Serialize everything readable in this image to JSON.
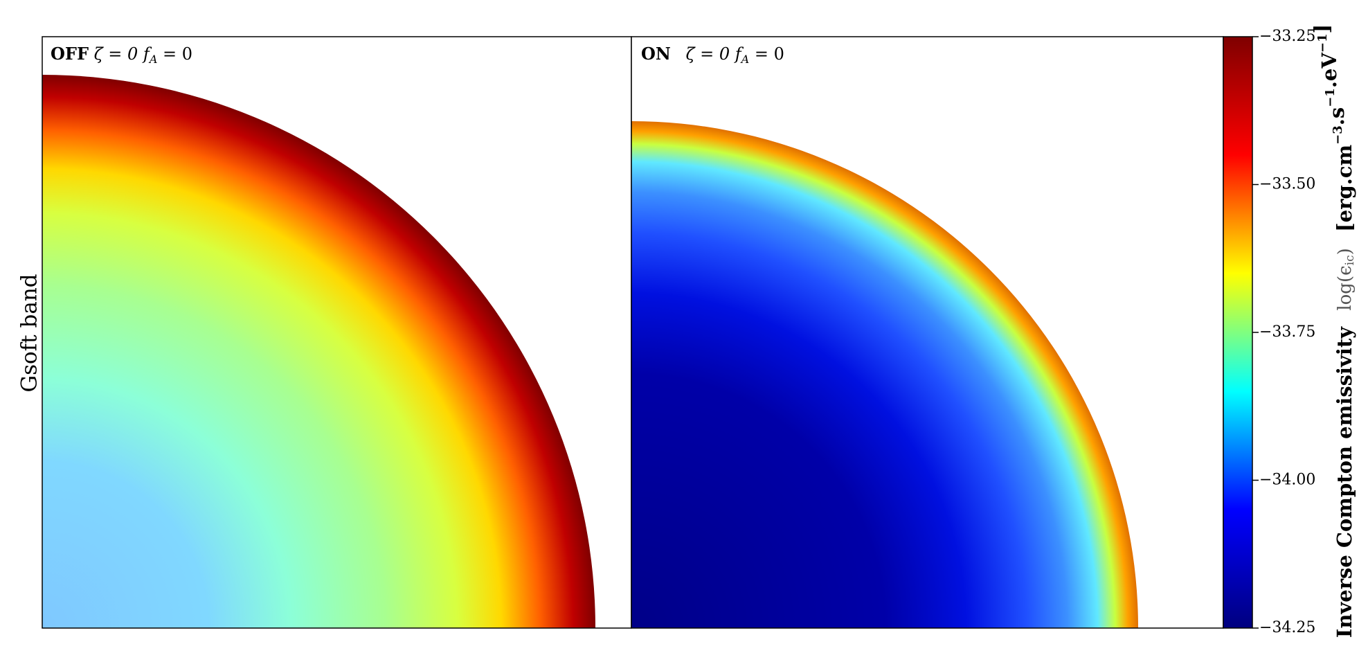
{
  "chart_data": {
    "type": "colormap",
    "ylabel": "Gsoft band",
    "panels": [
      {
        "label": "OFF",
        "zeta": "ζ = 0",
        "f": "f",
        "f_sub": "A",
        "f_eq": "= 0"
      },
      {
        "label": "ON",
        "zeta": "ζ = 0",
        "f": "f",
        "f_sub": "A",
        "f_eq": "= 0"
      }
    ],
    "colorbar_label": {
      "name": "Inverse Compton emissivity",
      "symbol": "log(ϵ",
      "symbol_sub": "ic",
      "symbol_end": ")",
      "units": [
        {
          "base": "[erg.cm",
          "exp": "−3"
        },
        {
          "base": ".s",
          "exp": "−1"
        },
        {
          "base": ".eV",
          "exp": "−1"
        }
      ],
      "units_end": "]"
    },
    "colormap": [
      "#00007f",
      "#0000ff",
      "#00ffff",
      "#ffff00",
      "#ff0000",
      "#7f0000"
    ],
    "ylim": [
      -34.25,
      -33.25
    ],
    "yticks": [
      {
        "value": -34.25,
        "label": "−34.25"
      },
      {
        "value": -34.0,
        "label": "−34.00"
      },
      {
        "value": -33.75,
        "label": "−33.75"
      },
      {
        "value": -33.5,
        "label": "−33.50"
      },
      {
        "value": -33.25,
        "label": "−33.25"
      }
    ]
  }
}
